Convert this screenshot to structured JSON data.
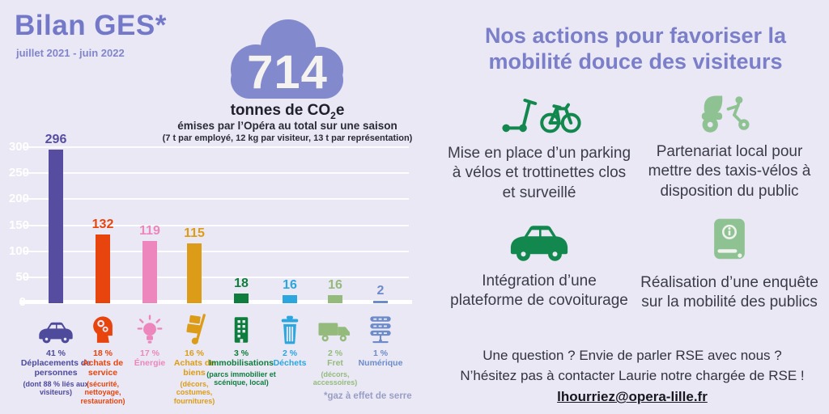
{
  "header": {
    "title": "Bilan GES*",
    "period": "juillet 2021 - juin 2022"
  },
  "cloud": {
    "value": "714",
    "unit_main": "tonnes de CO",
    "unit_sub": "2",
    "unit_end": "e",
    "caption": "émises par l’Opéra au total sur une saison",
    "detail": "(7 t par employé, 12 kg par visiteur, 13 t par représentation)",
    "color": "#8389CD"
  },
  "chart_data": {
    "type": "bar",
    "title": "Bilan GES juillet 2021 - juin 2022",
    "xlabel": "",
    "ylabel": "tonnes de CO₂e",
    "ylim": [
      0,
      300
    ],
    "yticks": [
      0,
      50,
      100,
      150,
      200,
      250,
      300
    ],
    "grid": true,
    "categories": [
      "Déplacements de personnes",
      "Achats de service",
      "Énergie",
      "Achats de biens",
      "Immobilisations",
      "Déchets",
      "Fret",
      "Numérique"
    ],
    "values": [
      296,
      132,
      119,
      115,
      18,
      16,
      16,
      2
    ],
    "bar_colors": [
      "#564DA1",
      "#E8440D",
      "#EC86BC",
      "#DC9C17",
      "#0E7D3D",
      "#2BA6DE",
      "#95BB7C",
      "#6D8BC9"
    ],
    "legend": [
      {
        "pct": "41 %",
        "label": "Déplacements de personnes",
        "sub": "(dont 88 % liés aux visiteurs)",
        "icon": "car-icon",
        "color": "#4E4A9C"
      },
      {
        "pct": "18 %",
        "label": "Achats de service",
        "sub": "(sécurité, nettoyage, restauration)",
        "icon": "head-gears-icon",
        "color": "#E8440D"
      },
      {
        "pct": "17 %",
        "label": "Énergie",
        "sub": "",
        "icon": "lightbulb-icon",
        "color": "#EC86BC"
      },
      {
        "pct": "16 %",
        "label": "Achats de biens",
        "sub": "(décors, costumes, fournitures)",
        "icon": "handtruck-icon",
        "color": "#DC9C17"
      },
      {
        "pct": "3 %",
        "label": "Immobilisations",
        "sub": "(parcs immobilier et scénique, local)",
        "icon": "building-icon",
        "color": "#0E7D3D"
      },
      {
        "pct": "2 %",
        "label": "Déchets",
        "sub": "",
        "icon": "trash-icon",
        "color": "#2BA6DE"
      },
      {
        "pct": "2 %",
        "label": "Fret",
        "sub": "(décors, accessoires)",
        "icon": "truck-icon",
        "color": "#95BB7C"
      },
      {
        "pct": "1 %",
        "label": "Numérique",
        "sub": "",
        "icon": "server-icon",
        "color": "#6D8BC9"
      }
    ],
    "footnote": "*gaz à effet de serre"
  },
  "right": {
    "title": "Nos actions pour favoriser la mobilité douce des visiteurs",
    "actions": [
      {
        "icon": "scooter-bike-icon",
        "color": "#12884E",
        "text": "Mise en place d’un parking à vélos et trottinettes clos et surveillé"
      },
      {
        "icon": "bike-taxi-icon",
        "color": "#8FC292",
        "text": "Partenariat local pour mettre des taxis-vélos à disposition du public"
      },
      {
        "icon": "car-green-icon",
        "color": "#12884E",
        "text": "Intégration d’une plateforme de covoiturage"
      },
      {
        "icon": "book-info-icon",
        "color": "#8FC292",
        "text": "Réalisation d’une enquête sur la mobilité des publics"
      }
    ],
    "contact": {
      "line1": "Une question ? Envie de parler RSE avec nous ?",
      "line2": "N’hésitez pas à contacter Laurie notre chargée de RSE !",
      "email": "lhourriez@opera-lille.fr"
    }
  }
}
